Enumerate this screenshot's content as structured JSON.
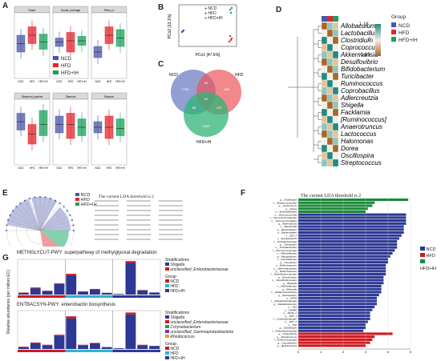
{
  "panel_labels": {
    "A": "A",
    "B": "B",
    "C": "C",
    "D": "D",
    "E": "E",
    "F": "F",
    "G": "G"
  },
  "groups": [
    {
      "name": "NCD",
      "color": "#4a56a6"
    },
    {
      "name": "HFD",
      "color": "#e3242b"
    },
    {
      "name": "HFD+IH",
      "color": "#1aa05a"
    }
  ],
  "panel_a": {
    "facets": [
      "Chao1",
      "Goods_coverage",
      "Pielou_e",
      "Observed_species",
      "Shannon",
      "Simpson"
    ],
    "legend": [
      "NCD",
      "HFD",
      "HFD+IH"
    ],
    "xcats": [
      "NCD",
      "HFD",
      "HFD+IH"
    ]
  },
  "panel_b": {
    "xlabel": "PCo1 [47.6%]",
    "ylabel": "PCo2 [13.1%]",
    "legend": [
      "NCD",
      "HFD",
      "HFD+IH"
    ]
  },
  "panel_c": {
    "sets": [
      {
        "name": "NCD",
        "color": "#6f7fc4"
      },
      {
        "name": "HFD",
        "color": "#e9555b"
      },
      {
        "name": "HFD+IH",
        "color": "#2fb476"
      }
    ],
    "regions": {
      "ncd_only": "1796",
      "hfd_only": "895",
      "ih_only": "1283",
      "ncd_hfd": "39",
      "ncd_ih": "85",
      "hfd_ih": "475",
      "all": "54"
    }
  },
  "panel_d": {
    "legend_title": "Group",
    "legend": [
      "NCD",
      "HFD",
      "HFD+IH"
    ],
    "scale": [
      "1.15",
      "0",
      "-1.15"
    ],
    "genera": [
      "Allobaculum",
      "Lactobacillus",
      "Clostridium",
      "Coprococcus",
      "Akkermansia",
      "Desulfovibrio",
      "Bifidobacterium",
      "Turicibacter",
      "Ruminococcus",
      "Coprobacillus",
      "Adlercreutzia",
      "Shigella",
      "Facklamia",
      "[Ruminococcus]",
      "Anaerotruncus",
      "Lactococcus",
      "Halomonas",
      "Dorea",
      "Oscillospira",
      "Streptococcus"
    ]
  },
  "panel_e": {
    "title": "The current LDA threshold is 2",
    "legend": [
      "NCD",
      "HFD",
      "HFD+IH"
    ]
  },
  "panel_f": {
    "title": "The current LDA threshold is 2",
    "legend": [
      "NCD",
      "HFD",
      "HFD+IH"
    ],
    "xticks": [
      "0",
      "1",
      "2",
      "3",
      "4",
      "5"
    ]
  },
  "panel_g": {
    "title1": "METHGLYCUT-PWY: superpathway of methylglyoxal degradation",
    "title2": "ENTBACSYN-PWY: enterobactin biosynthesis",
    "ylabel": "Relative abundance (per million EC)",
    "strat_title": "Stratifications",
    "strat1": [
      "Shigella",
      "unclassified_Enterobacteriaceae"
    ],
    "strat2": [
      "Shigella",
      "unclassified_Enterobacteriaceae",
      "Corynebacterium",
      "unclassified_Gammaproteobacteria",
      "Rhodococcus"
    ],
    "group_title": "Group",
    "groups": [
      "NCD",
      "HFD",
      "HFD+IH"
    ]
  },
  "chart_data": [
    {
      "type": "bar",
      "id": "F",
      "title": "The current LDA threshold is 2",
      "xlabel": "",
      "ylabel": "",
      "xlim": [
        0,
        5
      ],
      "taxa": [
        "g__Oscillospira",
        "f__Streptococcaceae",
        "g__Lactococcus",
        "g__Dorea",
        "o__Burkholderiales",
        "s__Verrucomicrobia",
        "f__Verrucomicrobiaceae",
        "o__Verrucomicrobiales",
        "g__Akkermansia",
        "c__Bacteroidia",
        "p__Bacteroidetes",
        "o__Bacteroidales",
        "f__S24_7",
        "c__Erysipelotrichi",
        "f__Turicibacteraceae",
        "g__Turicibacter",
        "o__Turicibacterales",
        "f__Ruminococcaceae",
        "o__Rikenellaceae",
        "g__Macoploplium",
        "f__Clostridiaceae",
        "g__Clostridium",
        "c__Deferribacteres",
        "o__Deferribacterales",
        "p__Deferribacteres",
        "f__Desulfovibrionaceae",
        "g__Desulfovibrio",
        "o__Desulfovibrionales",
        "g__Bilophila",
        "f__Rikenellaceae",
        "g__Rikenella",
        "c__Deltaproteobacteria",
        "g__Mucispirillum",
        "o__RF39",
        "f__Dehalobacteriaceae",
        "g__Dehalobacterium",
        "o__YS2",
        "c__CW040",
        "o__RC99_2",
        "g__TM7_1",
        "f__Coriobacteriaceae",
        "o__TM7_3",
        "c__F16",
        "g__Odoribacter",
        "f__[Odoribacteraceae]",
        "g__Anaerofustis",
        "g__Streptococcus",
        "f__Enterococcaceae",
        "g__Coprobacillus",
        "g__[Eubacterium]"
      ],
      "groups": [
        "HFD+IH",
        "HFD+IH",
        "HFD+IH",
        "HFD+IH",
        "HFD+IH",
        "NCD",
        "NCD",
        "NCD",
        "NCD",
        "NCD",
        "NCD",
        "NCD",
        "NCD",
        "NCD",
        "NCD",
        "NCD",
        "NCD",
        "NCD",
        "NCD",
        "NCD",
        "NCD",
        "NCD",
        "NCD",
        "NCD",
        "NCD",
        "NCD",
        "NCD",
        "NCD",
        "NCD",
        "NCD",
        "NCD",
        "NCD",
        "NCD",
        "NCD",
        "NCD",
        "NCD",
        "NCD",
        "NCD",
        "NCD",
        "NCD",
        "NCD",
        "NCD",
        "NCD",
        "NCD",
        "NCD",
        "HFD",
        "HFD",
        "HFD",
        "HFD",
        "HFD"
      ],
      "values": [
        4.9,
        3.4,
        3.3,
        3.1,
        3.0,
        4.8,
        4.8,
        4.8,
        4.8,
        4.7,
        4.7,
        4.7,
        4.6,
        4.5,
        4.4,
        4.4,
        4.4,
        4.3,
        4.2,
        4.1,
        4.0,
        4.0,
        3.9,
        3.9,
        3.9,
        3.9,
        3.8,
        3.8,
        3.8,
        3.7,
        3.7,
        3.7,
        3.6,
        3.5,
        3.5,
        3.5,
        3.4,
        3.3,
        3.2,
        3.2,
        3.2,
        3.1,
        3.0,
        3.0,
        2.9,
        4.2,
        3.4,
        3.3,
        3.2,
        3.0
      ]
    },
    {
      "type": "bar",
      "id": "G1",
      "title": "METHGLYCUT-PWY: superpathway of methylglyoxal degradation",
      "series": [
        {
          "name": "Shigella",
          "values": [
            0.05,
            0.18,
            0.1,
            0.3,
            0.55,
            0.08,
            0.15,
            0.05,
            0.02,
            0.9,
            0.12,
            0.06
          ]
        },
        {
          "name": "unclassified_Enterobacteriaceae",
          "values": [
            0.01,
            0.02,
            0.01,
            0.02,
            0.04,
            0.01,
            0.01,
            0.0,
            0.0,
            0.05,
            0.01,
            0.0
          ]
        }
      ],
      "group_of_sample": [
        "NCD",
        "NCD",
        "NCD",
        "NCD",
        "HFD",
        "HFD",
        "HFD",
        "HFD",
        "HFD+IH",
        "HFD+IH",
        "HFD+IH",
        "HFD+IH"
      ]
    },
    {
      "type": "bar",
      "id": "G2",
      "title": "ENTBACSYN-PWY: enterobactin biosynthesis",
      "series": [
        {
          "name": "Shigella",
          "values": [
            0.05,
            0.15,
            0.1,
            0.35,
            0.8,
            0.1,
            0.15,
            0.05,
            0.02,
            0.9,
            0.1,
            0.08
          ]
        },
        {
          "name": "unclassified_Enterobacteriaceae",
          "values": [
            0.01,
            0.02,
            0.01,
            0.02,
            0.05,
            0.01,
            0.01,
            0.0,
            0.0,
            0.05,
            0.01,
            0.0
          ]
        }
      ],
      "group_of_sample": [
        "NCD",
        "NCD",
        "NCD",
        "NCD",
        "HFD",
        "HFD",
        "HFD",
        "HFD",
        "HFD+IH",
        "HFD+IH",
        "HFD+IH",
        "HFD+IH"
      ]
    }
  ]
}
